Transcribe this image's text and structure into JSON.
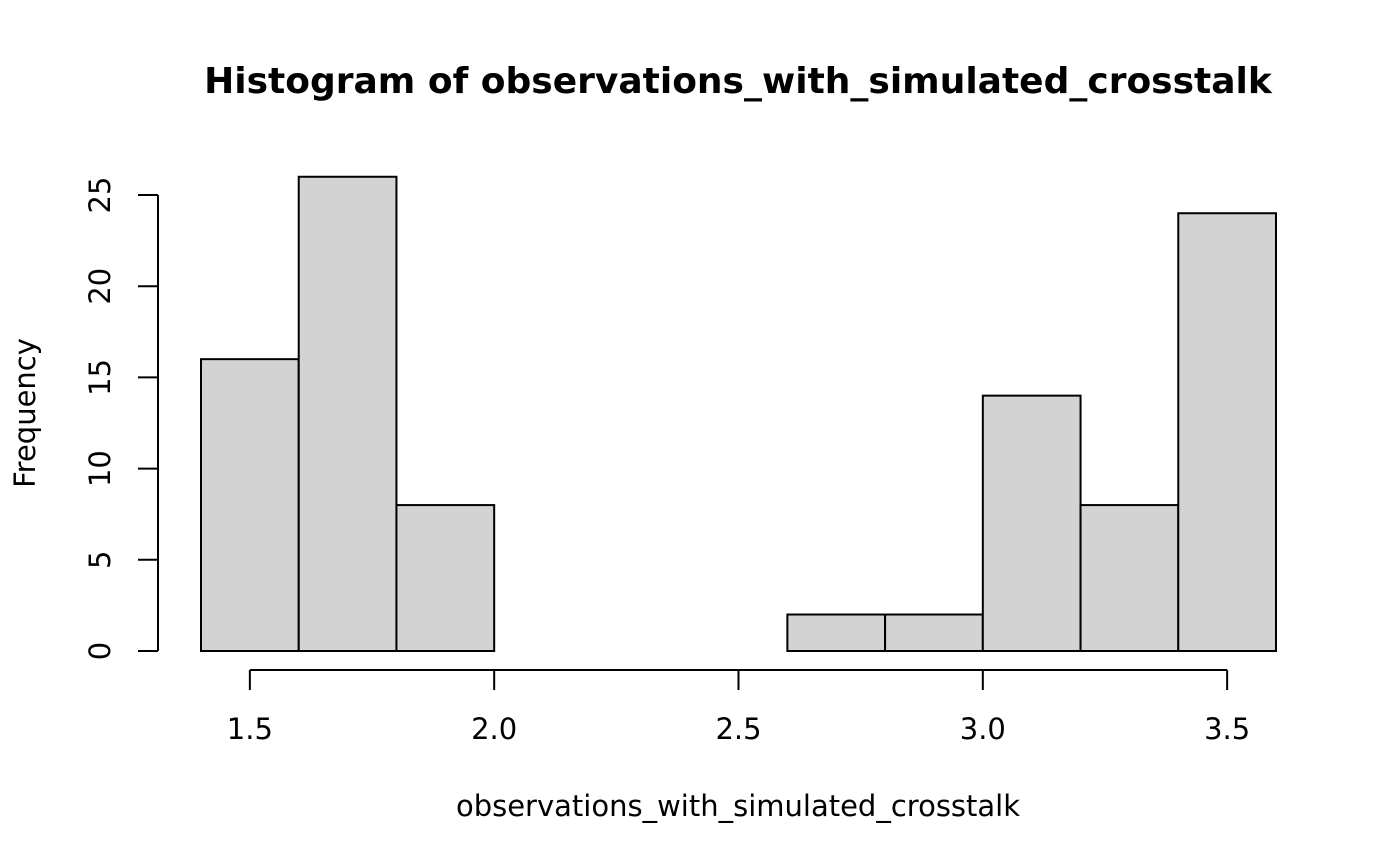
{
  "chart_data": {
    "type": "bar",
    "title": "Histogram of observations_with_simulated_crosstalk",
    "xlabel": "observations_with_simulated_crosstalk",
    "ylabel": "Frequency",
    "bins": [
      {
        "from": 1.4,
        "to": 1.6,
        "count": 16
      },
      {
        "from": 1.6,
        "to": 1.8,
        "count": 26
      },
      {
        "from": 1.8,
        "to": 2.0,
        "count": 8
      },
      {
        "from": 2.0,
        "to": 2.2,
        "count": 0
      },
      {
        "from": 2.2,
        "to": 2.4,
        "count": 0
      },
      {
        "from": 2.4,
        "to": 2.6,
        "count": 0
      },
      {
        "from": 2.6,
        "to": 2.8,
        "count": 2
      },
      {
        "from": 2.8,
        "to": 3.0,
        "count": 2
      },
      {
        "from": 3.0,
        "to": 3.2,
        "count": 14
      },
      {
        "from": 3.2,
        "to": 3.4,
        "count": 8
      },
      {
        "from": 3.4,
        "to": 3.6,
        "count": 24
      }
    ],
    "xlim": [
      1.4,
      3.6
    ],
    "ylim": [
      0,
      26
    ],
    "x_ticks": [
      1.5,
      2.0,
      2.5,
      3.0,
      3.5
    ],
    "x_tick_labels": [
      "1.5",
      "2.0",
      "2.5",
      "3.0",
      "3.5"
    ],
    "y_ticks": [
      0,
      5,
      10,
      15,
      20,
      25
    ],
    "y_tick_labels": [
      "0",
      "5",
      "10",
      "15",
      "20",
      "25"
    ],
    "bar_color": "#d3d3d3",
    "grid": false
  }
}
